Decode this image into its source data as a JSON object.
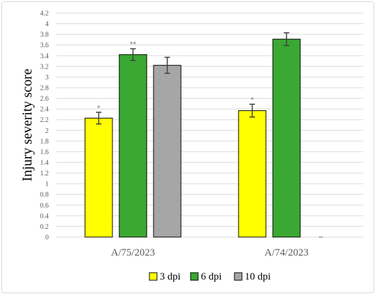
{
  "chart_data": {
    "type": "bar",
    "title": "",
    "xlabel": "",
    "ylabel": "Injury severity score",
    "ylim": [
      0,
      4.2
    ],
    "ytick_step": 0.2,
    "grid": true,
    "legend_position": "bottom",
    "categories": [
      "A/75/2023",
      "A/74/2023"
    ],
    "series": [
      {
        "name": "3 dpi",
        "color": "#ffff00",
        "values": [
          2.23,
          2.37
        ],
        "errors": [
          0.11,
          0.12
        ],
        "sig": [
          "*",
          "*"
        ]
      },
      {
        "name": "6 dpi",
        "color": "#3aa832",
        "values": [
          3.42,
          3.71
        ],
        "errors": [
          0.11,
          0.12
        ],
        "sig": [
          "**",
          ""
        ]
      },
      {
        "name": "10 dpi",
        "color": "#a6a6a6",
        "values": [
          3.22,
          0
        ],
        "errors": [
          0.15,
          0
        ],
        "sig": [
          "",
          ""
        ]
      }
    ]
  }
}
